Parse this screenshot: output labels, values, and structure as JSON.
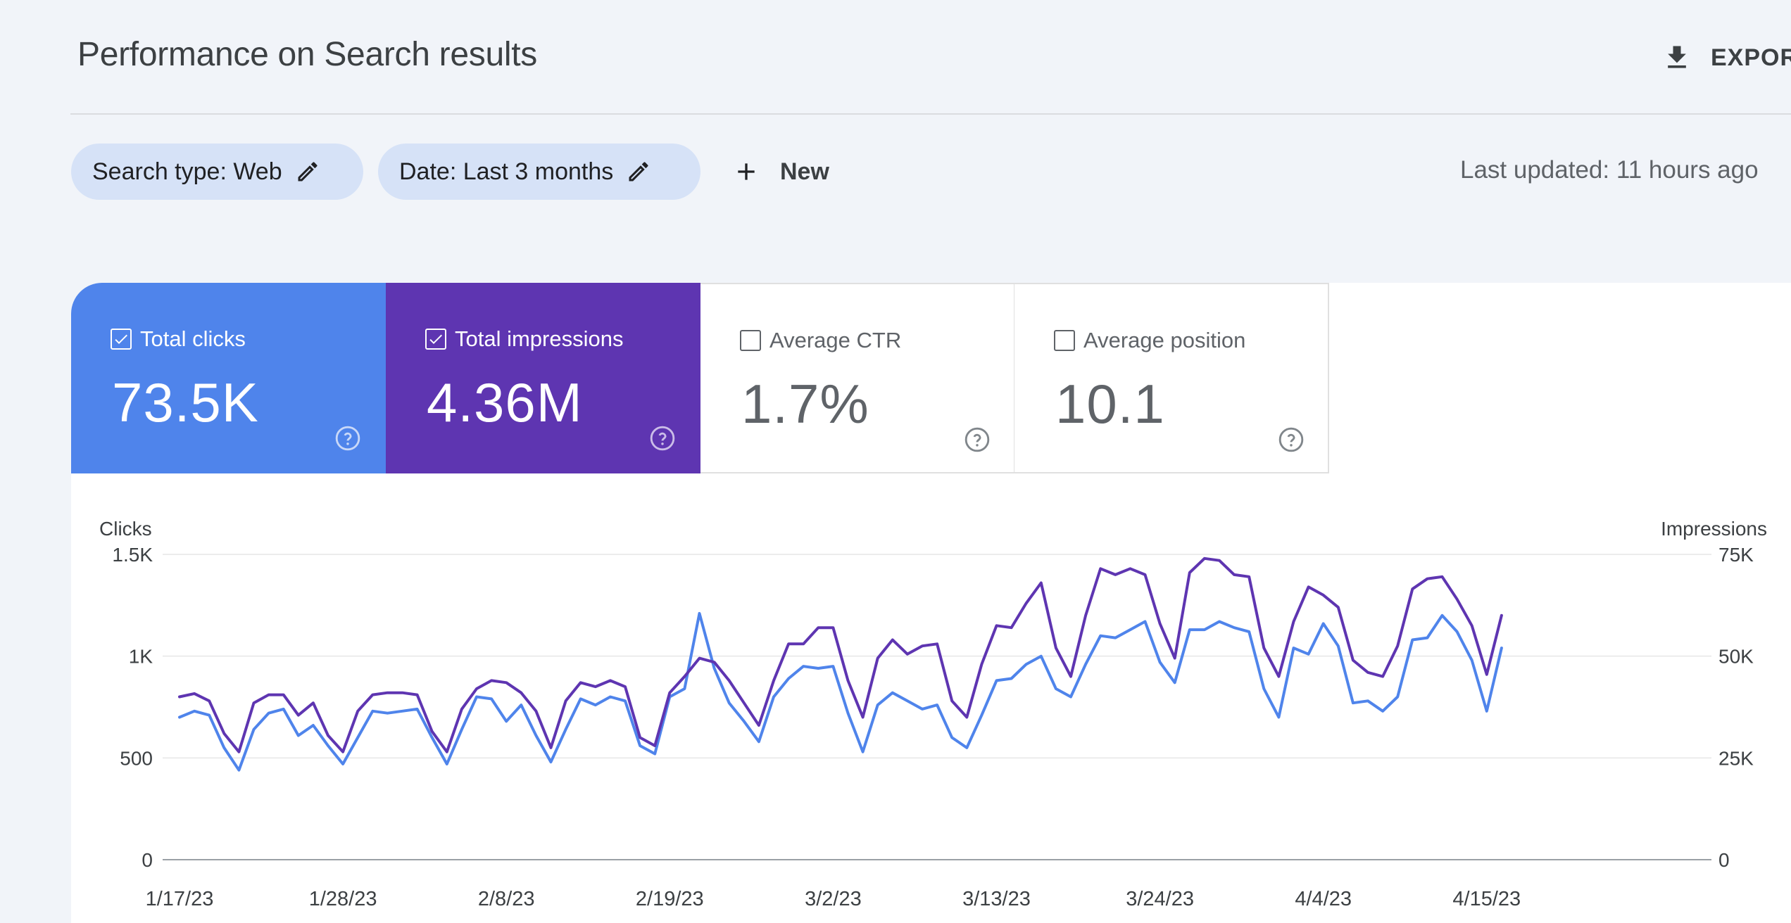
{
  "header": {
    "title": "Performance on Search results",
    "export_label": "EXPORT"
  },
  "filters": {
    "chips": [
      {
        "label": "Search type: Web"
      },
      {
        "label": "Date: Last 3 months"
      }
    ],
    "new_label": "New",
    "last_updated": "Last updated: 11 hours ago"
  },
  "metrics": [
    {
      "label": "Total clicks",
      "value": "73.5K",
      "checked": true,
      "color": "#4f84eb"
    },
    {
      "label": "Total impressions",
      "value": "4.36M",
      "checked": true,
      "color": "#5e35b1"
    },
    {
      "label": "Average CTR",
      "value": "1.7%",
      "checked": false
    },
    {
      "label": "Average position",
      "value": "10.1",
      "checked": false
    }
  ],
  "icons": {
    "export": "download-icon",
    "edit": "pencil-icon",
    "add": "plus-icon",
    "help": "help-circle-icon",
    "checkbox": "checkbox-icon"
  },
  "chart_data": {
    "type": "line",
    "left_axis": {
      "title": "Clicks",
      "ylim": [
        0,
        1500
      ],
      "ticks": [
        0,
        500,
        1000,
        1500
      ],
      "tick_labels": [
        "0",
        "500",
        "1K",
        "1.5K"
      ]
    },
    "right_axis": {
      "title": "Impressions",
      "ylim": [
        0,
        75000
      ],
      "ticks": [
        0,
        25000,
        50000,
        75000
      ],
      "tick_labels": [
        "0",
        "25K",
        "50K",
        "75K"
      ]
    },
    "x_start": "2023-01-17",
    "x_tick_labels": [
      "1/17/23",
      "1/28/23",
      "2/8/23",
      "2/19/23",
      "3/2/23",
      "3/13/23",
      "3/24/23",
      "4/4/23",
      "4/15/23"
    ],
    "x_tick_days": [
      0,
      11,
      22,
      33,
      44,
      55,
      66,
      77,
      88
    ],
    "grid": true,
    "series": [
      {
        "name": "Clicks",
        "axis": "left",
        "color": "#4f84eb",
        "values": [
          700,
          730,
          710,
          550,
          440,
          640,
          720,
          740,
          610,
          660,
          560,
          470,
          600,
          730,
          720,
          730,
          740,
          600,
          470,
          640,
          800,
          790,
          680,
          760,
          610,
          480,
          640,
          790,
          760,
          800,
          780,
          560,
          520,
          800,
          840,
          1210,
          940,
          770,
          680,
          580,
          800,
          890,
          950,
          940,
          950,
          720,
          530,
          760,
          820,
          780,
          740,
          760,
          600,
          550,
          710,
          880,
          890,
          960,
          1000,
          840,
          800,
          960,
          1100,
          1090,
          1130,
          1170,
          970,
          870,
          1130,
          1130,
          1170,
          1140,
          1120,
          840,
          700,
          1040,
          1010,
          1160,
          1050,
          770,
          780,
          730,
          800,
          1080,
          1090,
          1200,
          1120,
          980,
          730,
          1040
        ]
      },
      {
        "name": "Impressions",
        "axis": "right",
        "color": "#5e35b1",
        "values": [
          40000,
          40800,
          39000,
          31000,
          26500,
          38500,
          40500,
          40500,
          35500,
          38500,
          30500,
          26500,
          36500,
          40500,
          41000,
          41000,
          40500,
          31500,
          26500,
          37000,
          42000,
          44000,
          43500,
          41000,
          36500,
          27500,
          39000,
          43500,
          42500,
          44000,
          42500,
          30000,
          28000,
          41000,
          45000,
          49500,
          48500,
          44000,
          38500,
          33000,
          44000,
          53000,
          53000,
          57000,
          57000,
          44000,
          35000,
          49500,
          54000,
          50500,
          52500,
          53000,
          39000,
          35000,
          48000,
          57500,
          57000,
          63000,
          68000,
          52000,
          45000,
          60000,
          71500,
          70000,
          71500,
          70000,
          58000,
          49500,
          70500,
          74000,
          73500,
          70000,
          69500,
          52000,
          45000,
          58500,
          67000,
          65000,
          62000,
          49000,
          46000,
          45000,
          52500,
          66500,
          69000,
          69500,
          64000,
          57500,
          45500,
          60000
        ]
      }
    ]
  }
}
